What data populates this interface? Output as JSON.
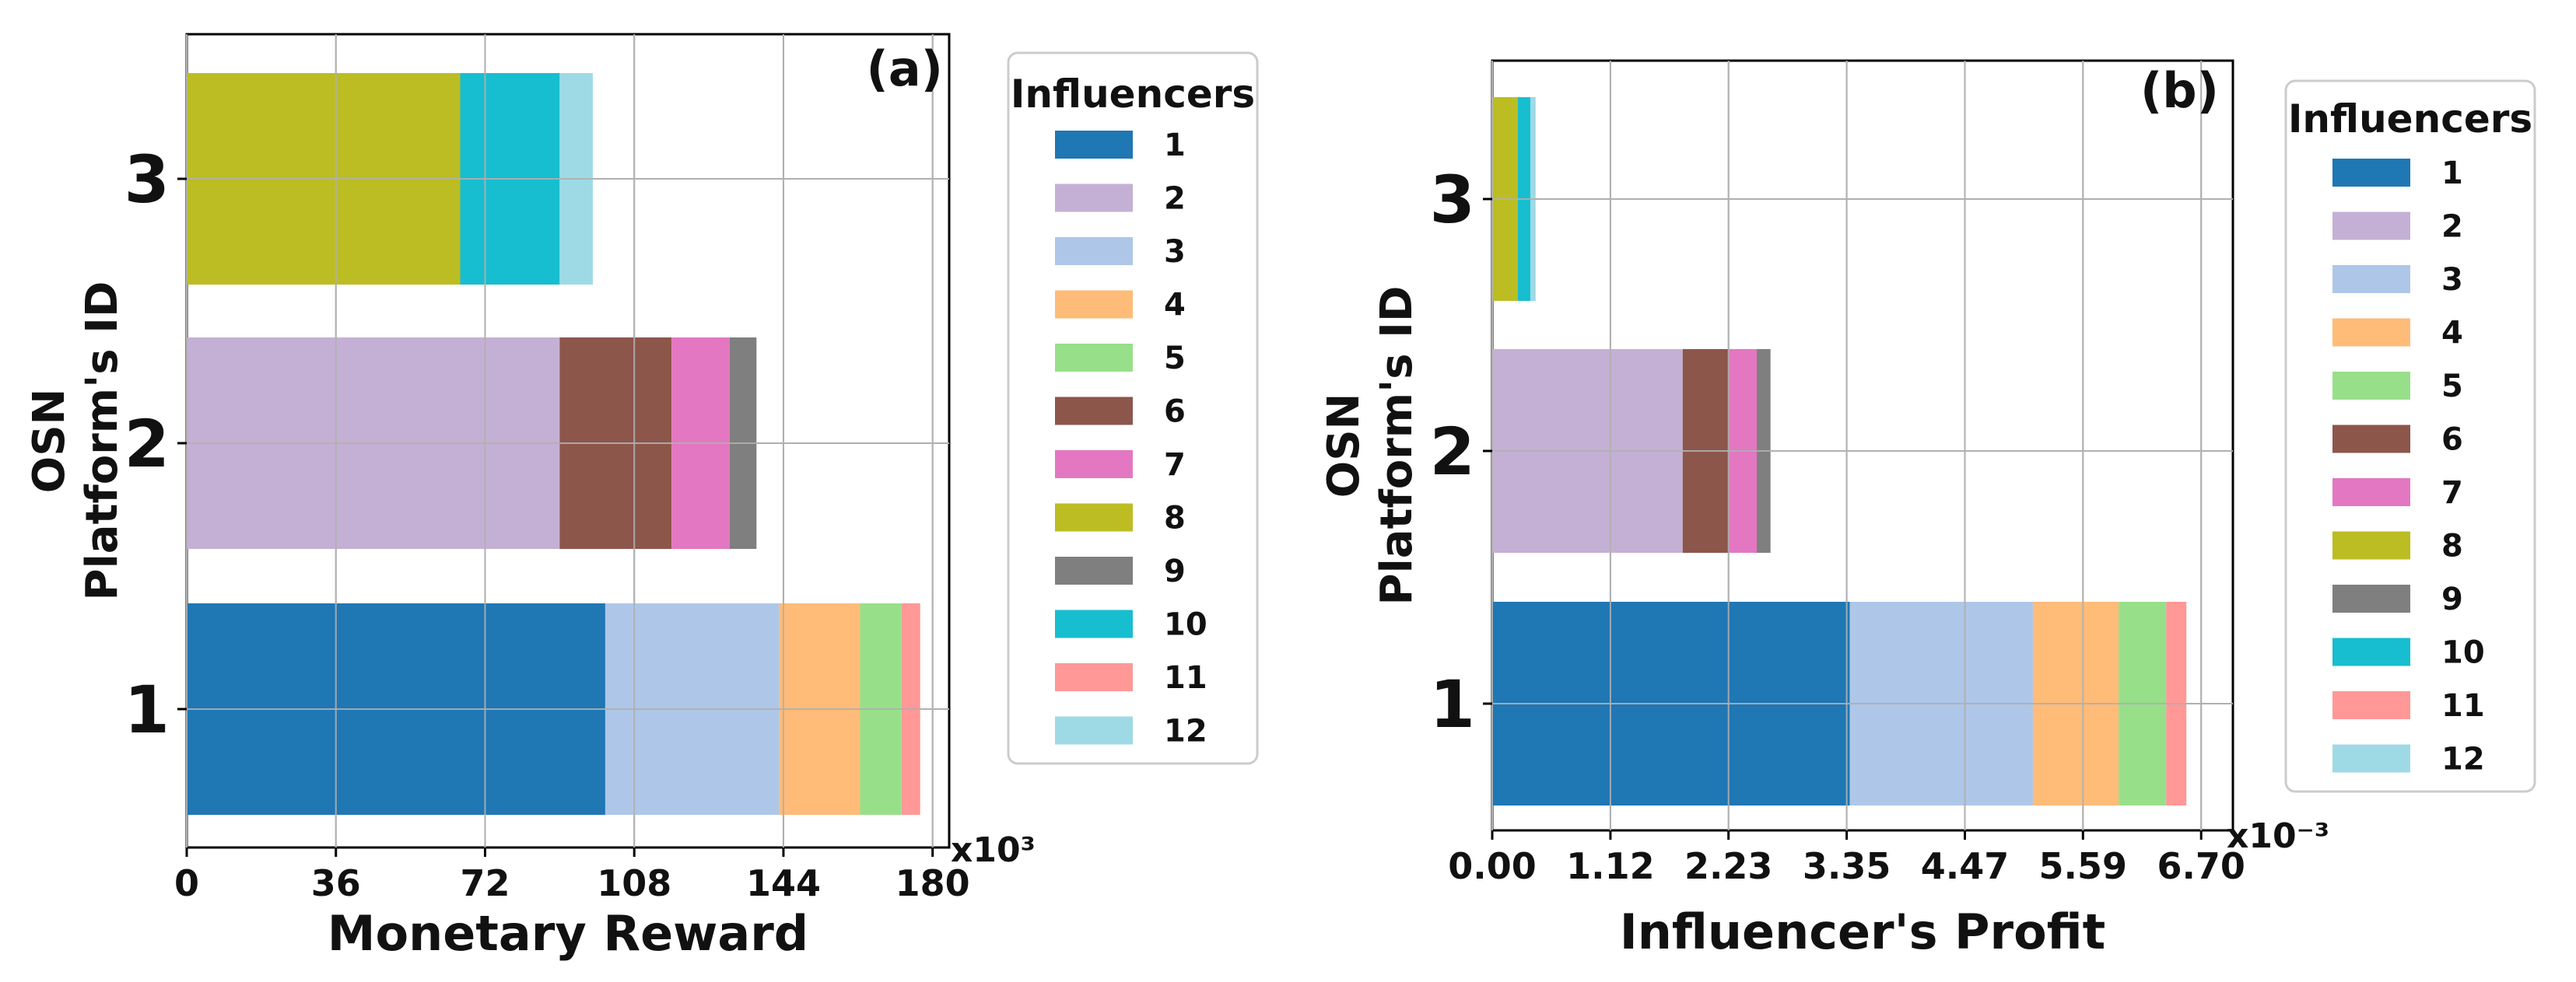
{
  "colors": {
    "1": "#1f77b4",
    "2": "#c5b0d5",
    "3": "#aec7e8",
    "4": "#ffbb78",
    "5": "#98df8a",
    "6": "#8c564b",
    "7": "#e377c2",
    "8": "#bcbd22",
    "9": "#7f7f7f",
    "10": "#17becf",
    "11": "#ff9896",
    "12": "#9edae5"
  },
  "chart_data": [
    {
      "type": "bar",
      "orientation": "horizontal",
      "stacked": true,
      "panel": "(a)",
      "xlabel": "Monetary Reward",
      "ylabel_line1": "OSN",
      "ylabel_line2": "Platform's ID",
      "x_multiplier": "x10³",
      "xlim": [
        0,
        184
      ],
      "xticks": [
        "0",
        "36",
        "72",
        "108",
        "144",
        "180"
      ],
      "xtick_values": [
        0,
        36,
        72,
        108,
        144,
        180
      ],
      "categories": [
        "1",
        "2",
        "3"
      ],
      "grid": true,
      "legend_title": "Influencers",
      "legend_placement": "right-outside",
      "legend_entries": [
        "1",
        "2",
        "3",
        "4",
        "5",
        "6",
        "7",
        "8",
        "9",
        "10",
        "11",
        "12"
      ],
      "series": [
        {
          "name": "1",
          "values": [
            101,
            0,
            0
          ]
        },
        {
          "name": "2",
          "values": [
            0,
            90,
            0
          ]
        },
        {
          "name": "3",
          "values": [
            42,
            0,
            0
          ]
        },
        {
          "name": "4",
          "values": [
            19.5,
            0,
            0
          ]
        },
        {
          "name": "5",
          "values": [
            10,
            0,
            0
          ]
        },
        {
          "name": "6",
          "values": [
            0,
            27,
            0
          ]
        },
        {
          "name": "7",
          "values": [
            0,
            14,
            0
          ]
        },
        {
          "name": "8",
          "values": [
            0,
            0,
            66
          ]
        },
        {
          "name": "9",
          "values": [
            0,
            6.5,
            0
          ]
        },
        {
          "name": "10",
          "values": [
            0,
            0,
            24
          ]
        },
        {
          "name": "11",
          "values": [
            4.5,
            0,
            0
          ]
        },
        {
          "name": "12",
          "values": [
            0,
            0,
            8
          ]
        }
      ]
    },
    {
      "type": "bar",
      "orientation": "horizontal",
      "stacked": true,
      "panel": "(b)",
      "xlabel": "Influencer's Profit",
      "ylabel_line1": "OSN",
      "ylabel_line2": "Platform's ID",
      "x_multiplier": "x10⁻³",
      "xlim": [
        0,
        7.0
      ],
      "xticks": [
        "0.00",
        "1.12",
        "2.23",
        "3.35",
        "4.47",
        "5.59",
        "6.70"
      ],
      "xtick_values": [
        0.0,
        1.117,
        2.233,
        3.35,
        4.467,
        5.583,
        6.7
      ],
      "categories": [
        "1",
        "2",
        "3"
      ],
      "grid": true,
      "legend_title": "Influencers",
      "legend_placement": "right-outside",
      "legend_entries": [
        "1",
        "2",
        "3",
        "4",
        "5",
        "6",
        "7",
        "8",
        "9",
        "10",
        "11",
        "12"
      ],
      "series": [
        {
          "name": "1",
          "values": [
            3.38,
            0,
            0
          ]
        },
        {
          "name": "2",
          "values": [
            0,
            1.8,
            0
          ]
        },
        {
          "name": "3",
          "values": [
            1.73,
            0,
            0
          ]
        },
        {
          "name": "4",
          "values": [
            0.81,
            0,
            0
          ]
        },
        {
          "name": "5",
          "values": [
            0.45,
            0,
            0
          ]
        },
        {
          "name": "6",
          "values": [
            0,
            0.44,
            0
          ]
        },
        {
          "name": "7",
          "values": [
            0,
            0.26,
            0
          ]
        },
        {
          "name": "8",
          "values": [
            0,
            0,
            0.24
          ]
        },
        {
          "name": "9",
          "values": [
            0,
            0.13,
            0
          ]
        },
        {
          "name": "10",
          "values": [
            0,
            0,
            0.12
          ]
        },
        {
          "name": "11",
          "values": [
            0.19,
            0,
            0
          ]
        },
        {
          "name": "12",
          "values": [
            0,
            0,
            0.05
          ]
        }
      ]
    }
  ]
}
